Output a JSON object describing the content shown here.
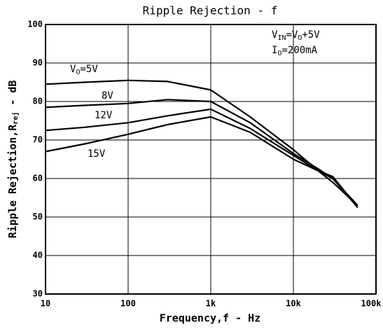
{
  "chart_data": {
    "type": "line",
    "title": "Ripple Rejection - f",
    "x_label": "Frequency,f - Hz",
    "y_label": [
      {
        "text": "Ripple Rejection,R",
        "sub": false
      },
      {
        "text": "rej",
        "sub": true
      },
      {
        "text": " - dB",
        "sub": false
      }
    ],
    "annotations": [
      [
        {
          "text": "V",
          "sub": false
        },
        {
          "text": "IN",
          "sub": true
        },
        {
          "text": "=V",
          "sub": false
        },
        {
          "text": "O",
          "sub": true
        },
        {
          "text": "+5V",
          "sub": false
        }
      ],
      [
        {
          "text": "I",
          "sub": false
        },
        {
          "text": "O",
          "sub": true
        },
        {
          "text": "=200mA",
          "sub": false
        }
      ]
    ],
    "x": [
      10,
      30,
      100,
      300,
      1000,
      3000,
      10000,
      20000,
      30000,
      60000
    ],
    "series": [
      {
        "label": [
          {
            "text": "V",
            "sub": false
          },
          {
            "text": "O",
            "sub": true
          },
          {
            "text": "=5V",
            "sub": false
          }
        ],
        "color": "#000000",
        "values": [
          84.5,
          85,
          85.5,
          85.2,
          83,
          76,
          67.5,
          62,
          59,
          53
        ]
      },
      {
        "label": [
          {
            "text": "8V",
            "sub": false
          }
        ],
        "color": "#000000",
        "values": [
          78.5,
          79,
          79.5,
          80.5,
          80,
          74.5,
          66.5,
          62.5,
          60,
          53
        ]
      },
      {
        "label": [
          {
            "text": "12V",
            "sub": false
          }
        ],
        "color": "#000000",
        "values": [
          72.5,
          73.3,
          74.5,
          76.3,
          78,
          73,
          66,
          62,
          60,
          52.5
        ]
      },
      {
        "label": [
          {
            "text": "15V",
            "sub": false
          }
        ],
        "color": "#000000",
        "values": [
          67,
          69,
          71.5,
          74,
          76,
          72,
          65,
          62,
          60.5,
          52.5
        ]
      }
    ],
    "xscale": "log",
    "xlim": [
      10,
      100000
    ],
    "xticks": [
      10,
      100,
      {
        "value": 1000,
        "label": "1k"
      },
      {
        "value": 10000,
        "label": "10k"
      },
      {
        "value": 100000,
        "label": "100k"
      }
    ],
    "ylim": [
      30,
      100
    ],
    "yticks": [
      30,
      40,
      50,
      60,
      70,
      80,
      90,
      100
    ],
    "grid": true
  }
}
